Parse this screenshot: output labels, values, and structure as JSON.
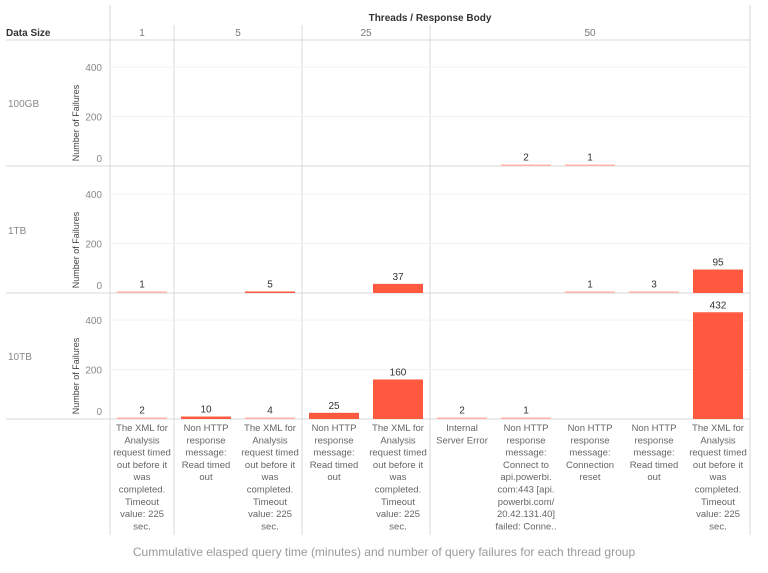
{
  "chart_data": {
    "type": "bar",
    "title": "",
    "column_header": "Threads / Response Body",
    "row_header": "Data Size",
    "ylabel": "Number of Failures",
    "yticks": [
      0,
      200,
      400
    ],
    "ylim": [
      0,
      510
    ],
    "grid": true,
    "bar_color": "#ff5a40",
    "bar_color_light": "#ffb3a6",
    "thread_groups": [
      {
        "label": "1",
        "columns": [
          0
        ]
      },
      {
        "label": "5",
        "columns": [
          1,
          2
        ]
      },
      {
        "label": "25",
        "columns": [
          3,
          4
        ]
      },
      {
        "label": "50",
        "columns": [
          5,
          6,
          7,
          8,
          9
        ]
      }
    ],
    "categories": [
      "The XML for Analysis request timed out before it was completed. Timeout value: 225 sec.",
      "Non HTTP response message: Read timed out",
      "The XML for Analysis request timed out before it was completed. Timeout value: 225 sec.",
      "Non HTTP response message: Read timed out",
      "The XML for Analysis request timed out before it was completed. Timeout value: 225 sec.",
      "Internal Server Error",
      "Non HTTP response message: Connect to api.powerbi.com:443 [api.powerbi.com/20.42.131.40] failed: Conne..",
      "Non HTTP response message: Connection reset",
      "Non HTTP response message: Read timed out",
      "The XML for Analysis request timed out before it was completed. Timeout value: 225 sec."
    ],
    "category_lines": [
      [
        "The XML for",
        "Analysis",
        "request timed",
        "out before it",
        "was",
        "completed.",
        "Timeout",
        "value: 225",
        "sec."
      ],
      [
        "Non HTTP",
        "response",
        "message:",
        "Read timed",
        "out"
      ],
      [
        "The XML for",
        "Analysis",
        "request timed",
        "out before it",
        "was",
        "completed.",
        "Timeout",
        "value: 225",
        "sec."
      ],
      [
        "Non HTTP",
        "response",
        "message:",
        "Read timed",
        "out"
      ],
      [
        "The XML for",
        "Analysis",
        "request timed",
        "out before it",
        "was",
        "completed.",
        "Timeout",
        "value: 225",
        "sec."
      ],
      [
        "Internal",
        "Server Error"
      ],
      [
        "Non HTTP",
        "response",
        "message:",
        "Connect to",
        "api.powerbi.",
        "com:443 [api.",
        "powerbi.com/",
        "20.42.131.40]",
        "failed: Conne.."
      ],
      [
        "Non HTTP",
        "response",
        "message:",
        "Connection",
        "reset"
      ],
      [
        "Non HTTP",
        "response",
        "message:",
        "Read timed",
        "out"
      ],
      [
        "The XML for",
        "Analysis",
        "request timed",
        "out before it",
        "was",
        "completed.",
        "Timeout",
        "value: 225",
        "sec."
      ]
    ],
    "series": [
      {
        "name": "100GB",
        "values": [
          null,
          null,
          null,
          null,
          null,
          null,
          2,
          1,
          null,
          null
        ]
      },
      {
        "name": "1TB",
        "values": [
          1,
          null,
          5,
          null,
          37,
          null,
          null,
          1,
          3,
          95
        ]
      },
      {
        "name": "10TB",
        "values": [
          2,
          10,
          4,
          25,
          160,
          2,
          1,
          null,
          null,
          432
        ]
      }
    ]
  },
  "caption": "Cummulative elasped query time (minutes) and number of query failures for each thread group"
}
